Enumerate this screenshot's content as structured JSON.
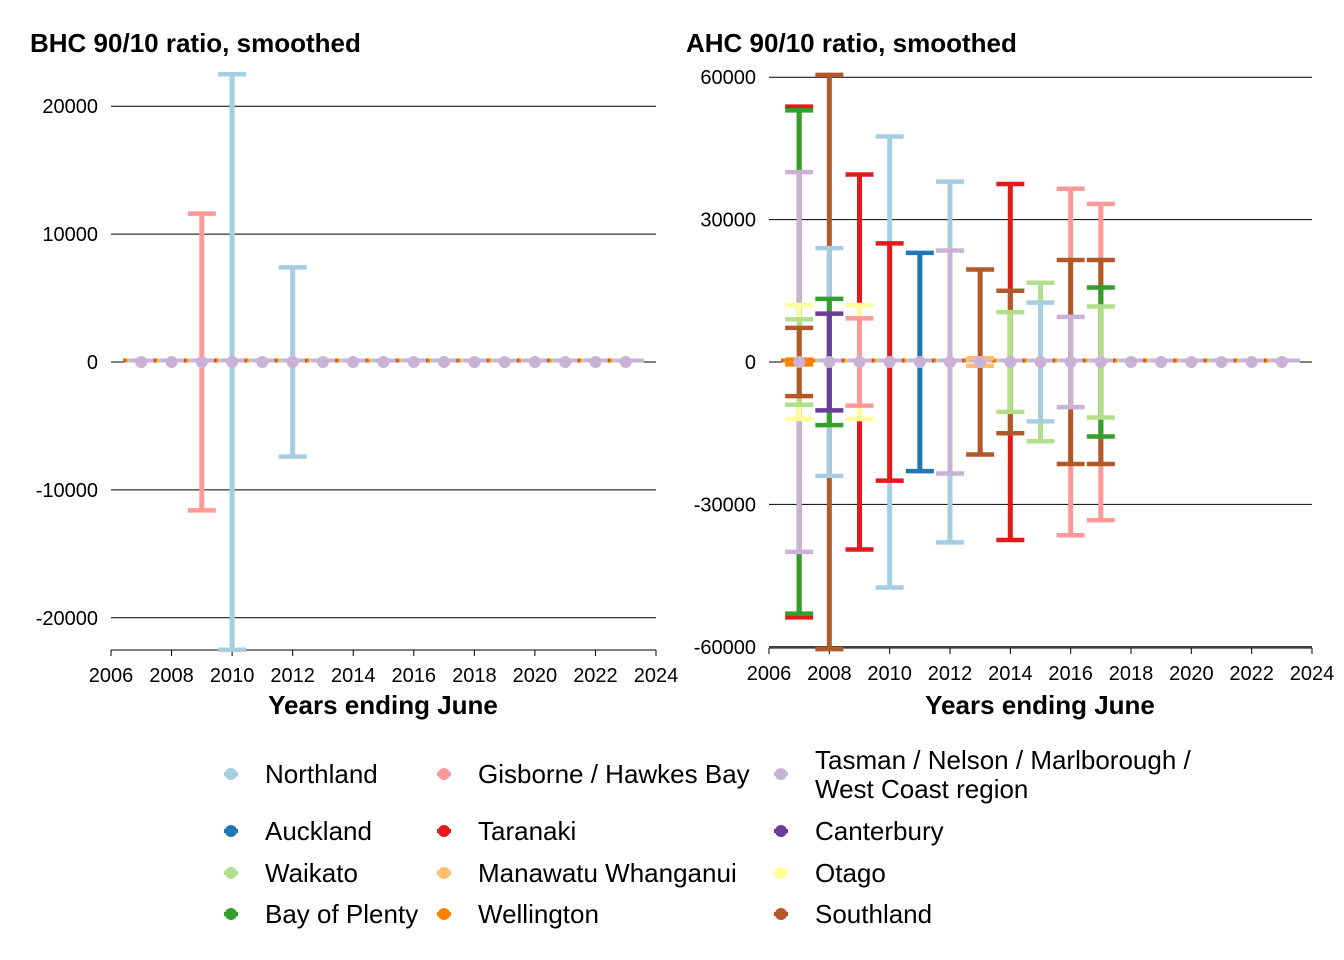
{
  "colors": {
    "Northland": "#A6CEE3",
    "Auckland": "#1F78B4",
    "Waikato": "#B2DF8A",
    "Bay of Plenty": "#33A02C",
    "Gisborne / Hawkes Bay": "#FB9A99",
    "Taranaki": "#E31A1C",
    "Manawatu Whanganui": "#FDBF6F",
    "Wellington": "#FF7F00",
    "Tasman / Nelson / Marlborough / West Coast region": "#CAB2D6",
    "Canterbury": "#6A3D9A",
    "Otago": "#FFFF99",
    "Southland": "#B15928"
  },
  "legend": {
    "items": [
      [
        "Northland"
      ],
      [
        "Auckland"
      ],
      [
        "Waikato"
      ],
      [
        "Bay of Plenty"
      ],
      [
        "Gisborne / Hawkes Bay"
      ],
      [
        "Taranaki"
      ],
      [
        "Manawatu Whanganui"
      ],
      [
        "Wellington"
      ],
      [
        "Tasman / Nelson / Marlborough /",
        "West Coast region"
      ],
      [
        "Canterbury"
      ],
      [
        "Otago"
      ],
      [
        "Southland"
      ]
    ]
  },
  "chart_data": [
    {
      "type": "scatter",
      "title": "BHC 90/10 ratio, smoothed",
      "xlabel": "Years ending June",
      "ylabel": "",
      "xlim": [
        2006,
        2024
      ],
      "ylim": [
        -23000,
        23000
      ],
      "xticks": [
        2006,
        2008,
        2010,
        2012,
        2014,
        2016,
        2018,
        2020,
        2022,
        2024
      ],
      "xtick_labels": [
        "2006",
        "2008",
        "2010",
        "2012",
        "2014",
        "2016",
        "2018",
        "2020",
        "2022",
        "2024"
      ],
      "yticks": [
        -20000,
        -10000,
        0,
        10000,
        20000
      ],
      "ytick_labels": [
        "-20000",
        "-10000",
        "0",
        "10000",
        "20000"
      ],
      "grid": "horizontal",
      "errorbars": [
        {
          "region": "Gisborne / Hawkes Bay",
          "x": 2009,
          "low": -11600,
          "high": 11600
        },
        {
          "region": "Northland",
          "x": 2010,
          "low": -22500,
          "high": 22500
        },
        {
          "region": "Northland",
          "x": 2012,
          "low": -7400,
          "high": 7400
        }
      ],
      "x_values": [
        2007,
        2008,
        2009,
        2010,
        2011,
        2012,
        2013,
        2014,
        2015,
        2016,
        2017,
        2018,
        2019,
        2020,
        2021,
        2022,
        2023
      ],
      "point_value": 0
    },
    {
      "type": "scatter",
      "title": "AHC 90/10 ratio, smoothed",
      "xlabel": "Years ending June",
      "ylabel": "",
      "xlim": [
        2006,
        2024
      ],
      "ylim": [
        -60000,
        60500
      ],
      "xticks": [
        2006,
        2008,
        2010,
        2012,
        2014,
        2016,
        2018,
        2020,
        2022,
        2024
      ],
      "xtick_labels": [
        "2006",
        "2008",
        "2010",
        "2012",
        "2014",
        "2016",
        "2018",
        "2020",
        "2022",
        "2024"
      ],
      "yticks": [
        -60000,
        -30000,
        0,
        30000,
        60000
      ],
      "ytick_labels": [
        "-60000",
        "-30000",
        "0",
        "30000",
        "60000"
      ],
      "grid": "horizontal",
      "errorbars": [
        {
          "region": "Taranaki",
          "x": 2007,
          "low": -53800,
          "high": 53800
        },
        {
          "region": "Bay of Plenty",
          "x": 2007,
          "low": -53000,
          "high": 53000
        },
        {
          "region": "Tasman / Nelson / Marlborough / West Coast region",
          "x": 2007,
          "low": -40000,
          "high": 40000
        },
        {
          "region": "Otago",
          "x": 2007,
          "low": -12000,
          "high": 12000
        },
        {
          "region": "Waikato",
          "x": 2007,
          "low": -9000,
          "high": 9000
        },
        {
          "region": "Southland",
          "x": 2007,
          "low": -7200,
          "high": 7200
        },
        {
          "region": "Wellington",
          "x": 2007,
          "low": -500,
          "high": 500
        },
        {
          "region": "Southland",
          "x": 2008,
          "low": -60500,
          "high": 60500
        },
        {
          "region": "Northland",
          "x": 2008,
          "low": -24000,
          "high": 24000
        },
        {
          "region": "Bay of Plenty",
          "x": 2008,
          "low": -13300,
          "high": 13300
        },
        {
          "region": "Canterbury",
          "x": 2008,
          "low": -10200,
          "high": 10200
        },
        {
          "region": "Taranaki",
          "x": 2009,
          "low": -39500,
          "high": 39500
        },
        {
          "region": "Otago",
          "x": 2009,
          "low": -12000,
          "high": 12000
        },
        {
          "region": "Gisborne / Hawkes Bay",
          "x": 2009,
          "low": -9200,
          "high": 9200
        },
        {
          "region": "Northland",
          "x": 2010,
          "low": -47500,
          "high": 47500
        },
        {
          "region": "Taranaki",
          "x": 2010,
          "low": -25000,
          "high": 25000
        },
        {
          "region": "Auckland",
          "x": 2011,
          "low": -23000,
          "high": 23000
        },
        {
          "region": "Northland",
          "x": 2012,
          "low": -38000,
          "high": 38000
        },
        {
          "region": "Tasman / Nelson / Marlborough / West Coast region",
          "x": 2012,
          "low": -23500,
          "high": 23500
        },
        {
          "region": "Southland",
          "x": 2013,
          "low": -19500,
          "high": 19500
        },
        {
          "region": "Manawatu Whanganui",
          "x": 2013,
          "low": -800,
          "high": 800
        },
        {
          "region": "Taranaki",
          "x": 2014,
          "low": -37500,
          "high": 37500
        },
        {
          "region": "Southland",
          "x": 2014,
          "low": -15000,
          "high": 15000
        },
        {
          "region": "Waikato",
          "x": 2014,
          "low": -10500,
          "high": 10500
        },
        {
          "region": "Waikato",
          "x": 2015,
          "low": -16700,
          "high": 16700
        },
        {
          "region": "Northland",
          "x": 2015,
          "low": -12500,
          "high": 12500
        },
        {
          "region": "Gisborne / Hawkes Bay",
          "x": 2016,
          "low": -36500,
          "high": 36500
        },
        {
          "region": "Southland",
          "x": 2016,
          "low": -21500,
          "high": 21500
        },
        {
          "region": "Tasman / Nelson / Marlborough / West Coast region",
          "x": 2016,
          "low": -9500,
          "high": 9500
        },
        {
          "region": "Gisborne / Hawkes Bay",
          "x": 2017,
          "low": -33300,
          "high": 33300
        },
        {
          "region": "Southland",
          "x": 2017,
          "low": -21500,
          "high": 21500
        },
        {
          "region": "Bay of Plenty",
          "x": 2017,
          "low": -15700,
          "high": 15700
        },
        {
          "region": "Waikato",
          "x": 2017,
          "low": -11700,
          "high": 11700
        }
      ],
      "x_values": [
        2007,
        2008,
        2009,
        2010,
        2011,
        2012,
        2013,
        2014,
        2015,
        2016,
        2017,
        2018,
        2019,
        2020,
        2021,
        2022,
        2023
      ],
      "point_value": 0
    }
  ]
}
